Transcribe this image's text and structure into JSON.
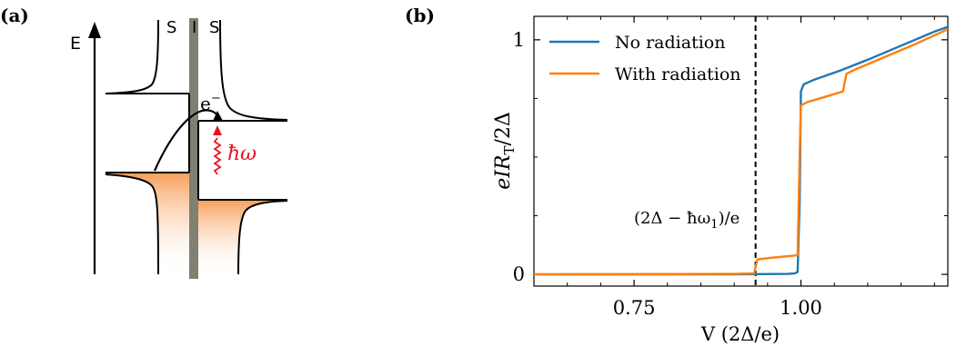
{
  "panel_a": {
    "label": "(a)",
    "energy_axis_label": "E",
    "junction_labels": [
      "S",
      "I",
      "S"
    ],
    "electron_label": "e",
    "electron_superscript": "−",
    "photon_label": "ħω",
    "colors": {
      "barrier": "#808070",
      "photon": "#e8141e",
      "fill": "#f7a05a",
      "curve": "#000000"
    }
  },
  "panel_b": {
    "label": "(b)",
    "annotation": "(2Δ − ħω",
    "annotation_sub": "1",
    "annotation_tail": ")/e"
  },
  "chart_data": {
    "type": "line",
    "xlabel": "V (2Δ/e)",
    "ylabel": "eIR",
    "ylabel_sub": "T",
    "ylabel_tail": "/2Δ",
    "xlim": [
      0.6,
      1.22
    ],
    "ylim": [
      -0.05,
      1.1
    ],
    "xticks": [
      0.75,
      1.0
    ],
    "xtick_labels": [
      "0.75",
      "1.00"
    ],
    "yticks": [
      0,
      1
    ],
    "ytick_labels": [
      "0",
      "1"
    ],
    "grid": false,
    "legend_position": "top-left",
    "vline_x": 0.932,
    "series": [
      {
        "name": "No radiation",
        "color": "#1f77b4",
        "points": [
          [
            0.6,
            0.0
          ],
          [
            0.9,
            0.0
          ],
          [
            0.98,
            0.002
          ],
          [
            0.99,
            0.004
          ],
          [
            0.995,
            0.01
          ],
          [
            0.998,
            0.3
          ],
          [
            1.0,
            0.78
          ],
          [
            1.004,
            0.81
          ],
          [
            1.02,
            0.83
          ],
          [
            1.06,
            0.87
          ],
          [
            1.1,
            0.915
          ],
          [
            1.15,
            0.975
          ],
          [
            1.2,
            1.035
          ],
          [
            1.22,
            1.055
          ]
        ]
      },
      {
        "name": "With radiation",
        "color": "#ff7f0e",
        "points": [
          [
            0.6,
            0.0
          ],
          [
            0.9,
            0.002
          ],
          [
            0.93,
            0.004
          ],
          [
            0.932,
            0.03
          ],
          [
            0.935,
            0.064
          ],
          [
            0.96,
            0.072
          ],
          [
            0.99,
            0.08
          ],
          [
            0.995,
            0.082
          ],
          [
            0.998,
            0.5
          ],
          [
            1.0,
            0.72
          ],
          [
            1.01,
            0.735
          ],
          [
            1.04,
            0.76
          ],
          [
            1.063,
            0.78
          ],
          [
            1.068,
            0.855
          ],
          [
            1.08,
            0.872
          ],
          [
            1.12,
            0.92
          ],
          [
            1.17,
            0.98
          ],
          [
            1.22,
            1.045
          ]
        ]
      }
    ]
  }
}
